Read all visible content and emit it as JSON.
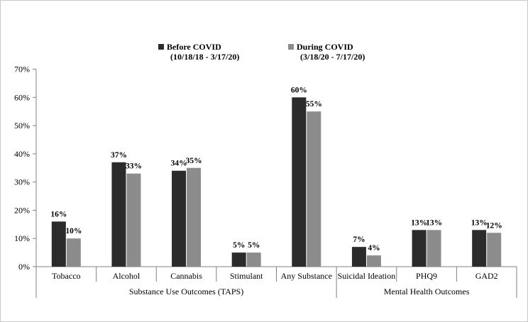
{
  "chart_data": {
    "type": "bar",
    "categories": [
      "Tobacco",
      "Alcohol",
      "Cannabis",
      "Stimulant",
      "Any Substance",
      "Suicidal Ideation",
      "PHQ9",
      "GAD2"
    ],
    "series": [
      {
        "name": "Before COVID",
        "period": "(10/18/18 - 3/17/20)",
        "color": "#2b2b2b",
        "values": [
          16,
          37,
          34,
          5,
          60,
          7,
          13,
          13
        ],
        "labels": [
          "16%",
          "37%",
          "34%",
          "5%",
          "60%",
          "7%",
          "13%",
          "13%"
        ]
      },
      {
        "name": "During COVID",
        "period": "(3/18/20 - 7/17/20)",
        "color": "#8c8c8c",
        "values": [
          10,
          33,
          35,
          5,
          55,
          4,
          13,
          12
        ],
        "labels": [
          "10%",
          "33%",
          "35%",
          "5%",
          "55%",
          "4%",
          "13%",
          "12%"
        ]
      }
    ],
    "groups": [
      {
        "label": "Substance Use Outcomes (TAPS)",
        "categories": [
          0,
          1,
          2,
          3,
          4
        ]
      },
      {
        "label": "Mental Health Outcomes",
        "categories": [
          5,
          6,
          7
        ]
      }
    ],
    "ylim": [
      0,
      70
    ],
    "yticks": [
      "0%",
      "10%",
      "20%",
      "30%",
      "40%",
      "50%",
      "60%",
      "70%"
    ],
    "grid": false,
    "legend_position": "top-center",
    "title": "",
    "xlabel": "",
    "ylabel": ""
  }
}
